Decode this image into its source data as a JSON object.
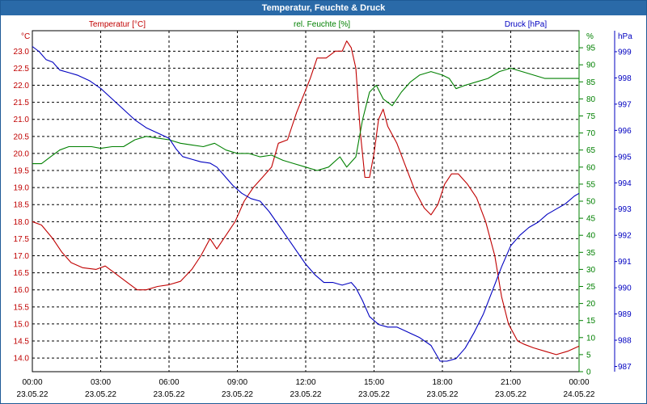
{
  "chart_data": {
    "type": "line",
    "title": "Temperatur, Feuchte & Druck",
    "x_ticks": [
      {
        "time": "00:00",
        "date": "23.05.22",
        "hour": 0
      },
      {
        "time": "03:00",
        "date": "23.05.22",
        "hour": 3
      },
      {
        "time": "06:00",
        "date": "23.05.22",
        "hour": 6
      },
      {
        "time": "09:00",
        "date": "23.05.22",
        "hour": 9
      },
      {
        "time": "12:00",
        "date": "23.05.22",
        "hour": 12
      },
      {
        "time": "15:00",
        "date": "23.05.22",
        "hour": 15
      },
      {
        "time": "18:00",
        "date": "23.05.22",
        "hour": 18
      },
      {
        "time": "21:00",
        "date": "23.05.22",
        "hour": 21
      },
      {
        "time": "00:00",
        "date": "24.05.22",
        "hour": 24
      }
    ],
    "xlim": [
      0,
      24
    ],
    "grid": true,
    "axes": [
      {
        "id": "temp",
        "side": "left",
        "unit": "°C",
        "label": "Temperatur [°C]",
        "color": "#c00000",
        "min": 13.6,
        "max": 23.6,
        "ticks": [
          "14.0",
          "14.5",
          "15.0",
          "15.5",
          "16.0",
          "16.5",
          "17.0",
          "17.5",
          "18.0",
          "18.5",
          "19.0",
          "19.5",
          "20.0",
          "20.5",
          "21.0",
          "21.5",
          "22.0",
          "22.5",
          "23.0"
        ]
      },
      {
        "id": "hum",
        "side": "right-inner",
        "unit": "%",
        "label": "rel. Feuchte [%]",
        "color": "#008000",
        "min": 0,
        "max": 100,
        "ticks": [
          "0",
          "5",
          "10",
          "15",
          "20",
          "25",
          "30",
          "35",
          "40",
          "45",
          "50",
          "55",
          "60",
          "65",
          "70",
          "75",
          "80",
          "85",
          "90",
          "95"
        ]
      },
      {
        "id": "press",
        "side": "right-outer",
        "unit": "hPa",
        "label": "Druck [hPa]",
        "color": "#0000c0",
        "min": 986.8,
        "max": 999.8,
        "ticks": [
          "987",
          "988",
          "989",
          "990",
          "991",
          "992",
          "993",
          "994",
          "995",
          "996",
          "997",
          "998",
          "999"
        ]
      }
    ],
    "series": [
      {
        "name": "Temperatur",
        "axis": "temp",
        "color": "#c00000",
        "points": [
          [
            0,
            18.0
          ],
          [
            0.4,
            17.9
          ],
          [
            0.9,
            17.5
          ],
          [
            1.3,
            17.1
          ],
          [
            1.7,
            16.8
          ],
          [
            2.2,
            16.65
          ],
          [
            2.8,
            16.6
          ],
          [
            3.2,
            16.7
          ],
          [
            3.6,
            16.5
          ],
          [
            4.1,
            16.25
          ],
          [
            4.6,
            16.0
          ],
          [
            5.0,
            16.0
          ],
          [
            5.5,
            16.1
          ],
          [
            6.0,
            16.15
          ],
          [
            6.5,
            16.25
          ],
          [
            7.0,
            16.6
          ],
          [
            7.4,
            17.0
          ],
          [
            7.8,
            17.5
          ],
          [
            8.1,
            17.2
          ],
          [
            8.5,
            17.6
          ],
          [
            8.9,
            18.0
          ],
          [
            9.3,
            18.6
          ],
          [
            9.7,
            19.0
          ],
          [
            10.1,
            19.3
          ],
          [
            10.5,
            19.6
          ],
          [
            10.8,
            20.3
          ],
          [
            11.2,
            20.4
          ],
          [
            11.6,
            21.2
          ],
          [
            11.9,
            21.7
          ],
          [
            12.2,
            22.2
          ],
          [
            12.5,
            22.8
          ],
          [
            12.9,
            22.8
          ],
          [
            13.3,
            23.0
          ],
          [
            13.6,
            23.0
          ],
          [
            13.8,
            23.3
          ],
          [
            14.0,
            23.1
          ],
          [
            14.2,
            22.5
          ],
          [
            14.4,
            20.6
          ],
          [
            14.6,
            19.3
          ],
          [
            14.8,
            19.3
          ],
          [
            15.0,
            20.0
          ],
          [
            15.2,
            21.0
          ],
          [
            15.4,
            21.3
          ],
          [
            15.6,
            20.8
          ],
          [
            16.0,
            20.3
          ],
          [
            16.4,
            19.6
          ],
          [
            16.8,
            18.9
          ],
          [
            17.2,
            18.4
          ],
          [
            17.5,
            18.2
          ],
          [
            17.8,
            18.5
          ],
          [
            18.1,
            19.1
          ],
          [
            18.4,
            19.4
          ],
          [
            18.7,
            19.4
          ],
          [
            19.1,
            19.1
          ],
          [
            19.5,
            18.7
          ],
          [
            19.9,
            18.0
          ],
          [
            20.3,
            17.0
          ],
          [
            20.6,
            15.8
          ],
          [
            20.9,
            15.0
          ],
          [
            21.3,
            14.5
          ],
          [
            21.6,
            14.4
          ],
          [
            22.0,
            14.3
          ],
          [
            22.5,
            14.2
          ],
          [
            23.0,
            14.1
          ],
          [
            23.5,
            14.2
          ],
          [
            24.0,
            14.35
          ]
        ]
      },
      {
        "name": "rel. Feuchte",
        "axis": "hum",
        "color": "#008000",
        "points": [
          [
            0,
            61
          ],
          [
            0.4,
            61
          ],
          [
            0.8,
            63
          ],
          [
            1.2,
            65
          ],
          [
            1.6,
            66
          ],
          [
            2.2,
            66
          ],
          [
            2.6,
            66
          ],
          [
            3.0,
            65.5
          ],
          [
            3.5,
            66
          ],
          [
            4.0,
            66
          ],
          [
            4.5,
            68
          ],
          [
            5.0,
            69
          ],
          [
            5.5,
            68.5
          ],
          [
            6.0,
            68
          ],
          [
            6.5,
            67
          ],
          [
            7.0,
            66.5
          ],
          [
            7.5,
            66
          ],
          [
            8.0,
            67
          ],
          [
            8.5,
            65
          ],
          [
            9.0,
            64
          ],
          [
            9.5,
            64
          ],
          [
            10.0,
            63
          ],
          [
            10.5,
            63.5
          ],
          [
            11.0,
            62
          ],
          [
            11.5,
            61
          ],
          [
            12.0,
            60
          ],
          [
            12.5,
            59
          ],
          [
            13.0,
            60
          ],
          [
            13.5,
            63
          ],
          [
            13.8,
            60
          ],
          [
            14.2,
            63
          ],
          [
            14.5,
            74
          ],
          [
            14.8,
            82
          ],
          [
            15.1,
            84
          ],
          [
            15.4,
            80
          ],
          [
            15.8,
            78
          ],
          [
            16.2,
            82
          ],
          [
            16.6,
            85
          ],
          [
            17.0,
            87
          ],
          [
            17.5,
            88
          ],
          [
            18.0,
            87
          ],
          [
            18.3,
            86
          ],
          [
            18.6,
            83
          ],
          [
            19.0,
            84
          ],
          [
            19.5,
            85
          ],
          [
            20.0,
            86
          ],
          [
            20.5,
            88
          ],
          [
            21.0,
            89
          ],
          [
            21.5,
            88
          ],
          [
            22.0,
            87
          ],
          [
            22.5,
            86
          ],
          [
            23.0,
            86
          ],
          [
            23.5,
            86
          ],
          [
            24.0,
            86
          ]
        ]
      },
      {
        "name": "Druck",
        "axis": "press",
        "color": "#0000c0",
        "points": [
          [
            0,
            999.2
          ],
          [
            0.3,
            999.0
          ],
          [
            0.6,
            998.7
          ],
          [
            0.9,
            998.6
          ],
          [
            1.2,
            998.3
          ],
          [
            1.6,
            998.2
          ],
          [
            2.0,
            998.1
          ],
          [
            2.5,
            997.9
          ],
          [
            3.0,
            997.6
          ],
          [
            3.5,
            997.2
          ],
          [
            4.0,
            996.8
          ],
          [
            4.5,
            996.4
          ],
          [
            5.0,
            996.1
          ],
          [
            5.5,
            995.9
          ],
          [
            6.0,
            995.7
          ],
          [
            6.3,
            995.3
          ],
          [
            6.6,
            995.0
          ],
          [
            7.0,
            994.9
          ],
          [
            7.4,
            994.8
          ],
          [
            7.8,
            994.75
          ],
          [
            8.1,
            994.6
          ],
          [
            8.4,
            994.3
          ],
          [
            8.8,
            993.9
          ],
          [
            9.2,
            993.6
          ],
          [
            9.6,
            993.4
          ],
          [
            10.0,
            993.3
          ],
          [
            10.4,
            992.9
          ],
          [
            10.8,
            992.4
          ],
          [
            11.2,
            991.9
          ],
          [
            11.6,
            991.4
          ],
          [
            12.0,
            990.9
          ],
          [
            12.4,
            990.5
          ],
          [
            12.8,
            990.2
          ],
          [
            13.2,
            990.2
          ],
          [
            13.6,
            990.1
          ],
          [
            14.0,
            990.2
          ],
          [
            14.2,
            990.0
          ],
          [
            14.5,
            989.5
          ],
          [
            14.8,
            988.9
          ],
          [
            15.2,
            988.6
          ],
          [
            15.6,
            988.5
          ],
          [
            16.0,
            988.5
          ],
          [
            16.5,
            988.3
          ],
          [
            17.0,
            988.1
          ],
          [
            17.5,
            987.8
          ],
          [
            17.9,
            987.2
          ],
          [
            18.2,
            987.2
          ],
          [
            18.6,
            987.3
          ],
          [
            19.0,
            987.7
          ],
          [
            19.4,
            988.3
          ],
          [
            19.8,
            989.0
          ],
          [
            20.2,
            989.9
          ],
          [
            20.6,
            990.8
          ],
          [
            21.0,
            991.6
          ],
          [
            21.4,
            992.0
          ],
          [
            21.8,
            992.3
          ],
          [
            22.2,
            992.5
          ],
          [
            22.6,
            992.8
          ],
          [
            23.0,
            993.0
          ],
          [
            23.4,
            993.2
          ],
          [
            23.8,
            993.5
          ],
          [
            24.0,
            993.6
          ]
        ]
      }
    ]
  }
}
